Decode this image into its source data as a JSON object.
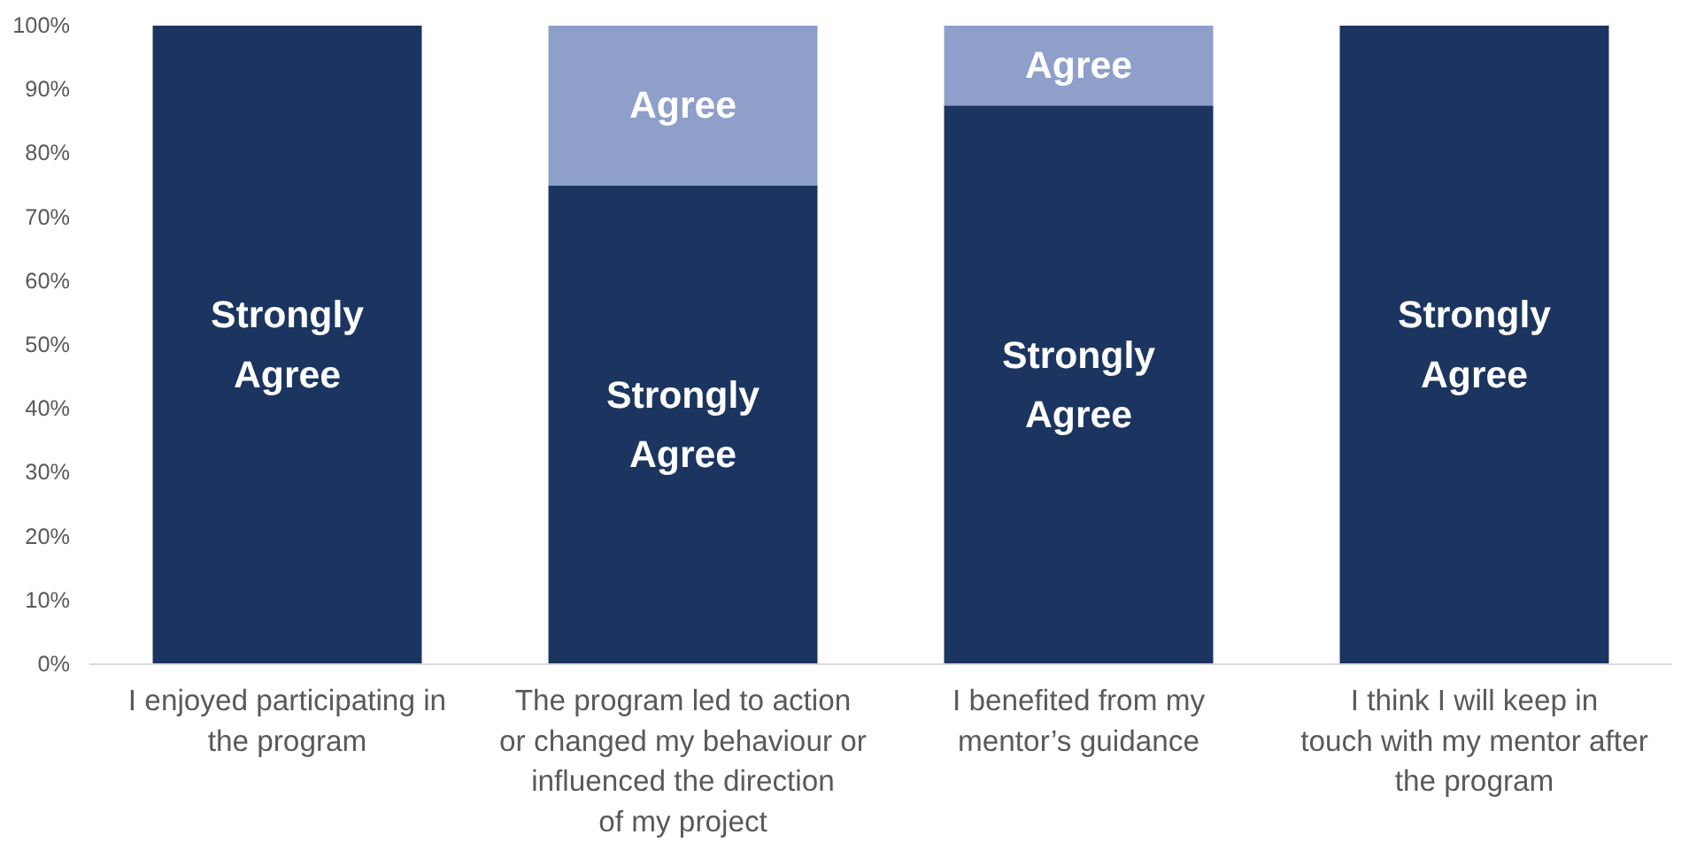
{
  "chart_data": {
    "type": "bar",
    "stacked": true,
    "categories": [
      "I enjoyed participating in the program",
      "The program led to action or changed my behaviour or influenced the direction of my project",
      "I benefited from my mentor’s guidance",
      "I think I will keep in touch with my mentor after the program"
    ],
    "series": [
      {
        "color": "#1b3560",
        "values": [
          100,
          75,
          87.5,
          100
        ],
        "value_labels": [
          "Strongly Agree",
          "Strongly Agree",
          "Strongly Agree",
          "Strongly Agree"
        ]
      },
      {
        "color": "#8e9fca",
        "values": [
          0,
          25,
          12.5,
          0
        ],
        "value_labels": [
          null,
          "Agree",
          "Agree",
          null
        ]
      }
    ],
    "ylim": [
      0,
      100
    ],
    "yticks": [
      {
        "value": 0,
        "label": "0%"
      },
      {
        "value": 10,
        "label": "10%"
      },
      {
        "value": 20,
        "label": "20%"
      },
      {
        "value": 30,
        "label": "30%"
      },
      {
        "value": 40,
        "label": "40%"
      },
      {
        "value": 50,
        "label": "50%"
      },
      {
        "value": 60,
        "label": "60%"
      },
      {
        "value": 70,
        "label": "70%"
      },
      {
        "value": 80,
        "label": "80%"
      },
      {
        "value": 90,
        "label": "90%"
      },
      {
        "value": 100,
        "label": "100%"
      }
    ],
    "grid": false
  }
}
